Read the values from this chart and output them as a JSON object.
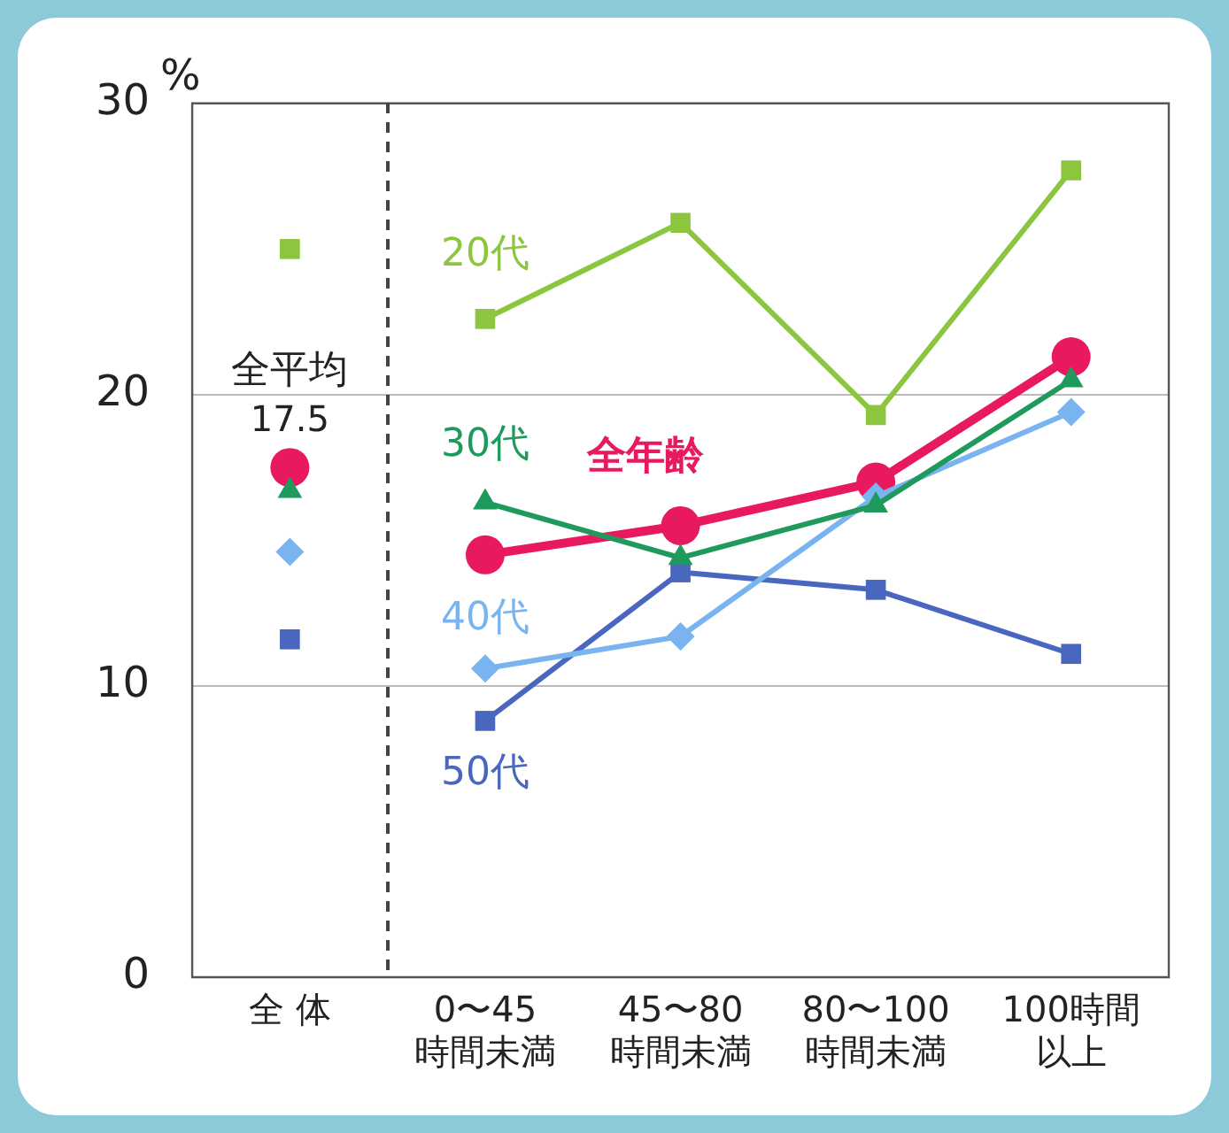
{
  "chart_data": {
    "type": "line",
    "categories": [
      "全 体",
      "0〜45時間未満",
      "45〜80時間未満",
      "80〜100時間未満",
      "100時間以上"
    ],
    "ylabel": "%",
    "ylim": [
      0,
      30
    ],
    "yticks": [
      0,
      10,
      20,
      30
    ],
    "grid": "y",
    "legend": false,
    "line_style": "solid",
    "annotations": [
      "全平均"
    ],
    "series": [
      {
        "name": "20代",
        "color": "#8cc63f",
        "marker": "square",
        "values": [
          null,
          22.6,
          25.9,
          19.3,
          27.7
        ]
      },
      {
        "name": "30代",
        "color": "#1f9a5c",
        "marker": "triangle",
        "values": [
          null,
          16.3,
          14.4,
          16.2,
          20.5
        ]
      },
      {
        "name": "40代",
        "color": "#7ab4f0",
        "marker": "diamond",
        "values": [
          null,
          10.6,
          11.7,
          16.5,
          19.4
        ]
      },
      {
        "name": "50代",
        "color": "#4a67c0",
        "marker": "square",
        "values": [
          null,
          8.8,
          13.9,
          13.3,
          11.1
        ]
      },
      {
        "name": "全年齢",
        "color": "#e8195e",
        "marker": "circle",
        "values": [
          null,
          14.5,
          15.5,
          17.0,
          21.3
        ]
      },
      {
        "type": "scatter",
        "color": "#8cc63f",
        "marker": "square",
        "values": [
          25.0,
          null,
          null,
          null,
          null
        ]
      },
      {
        "type": "scatter",
        "color": "#1f9a5c",
        "marker": "triangle",
        "values": [
          16.7,
          null,
          null,
          null,
          null
        ]
      },
      {
        "type": "scatter",
        "color": "#7ab4f0",
        "marker": "diamond",
        "values": [
          14.6,
          null,
          null,
          null,
          null
        ]
      },
      {
        "type": "scatter",
        "color": "#4a67c0",
        "marker": "square",
        "values": [
          11.6,
          null,
          null,
          null,
          null
        ]
      },
      {
        "type": "scatter",
        "color": "#e8195e",
        "marker": "circle",
        "values": [
          17.5,
          null,
          null,
          null,
          null
        ],
        "value_labels": [
          "17.5",
          null,
          null,
          null,
          null
        ]
      }
    ]
  }
}
